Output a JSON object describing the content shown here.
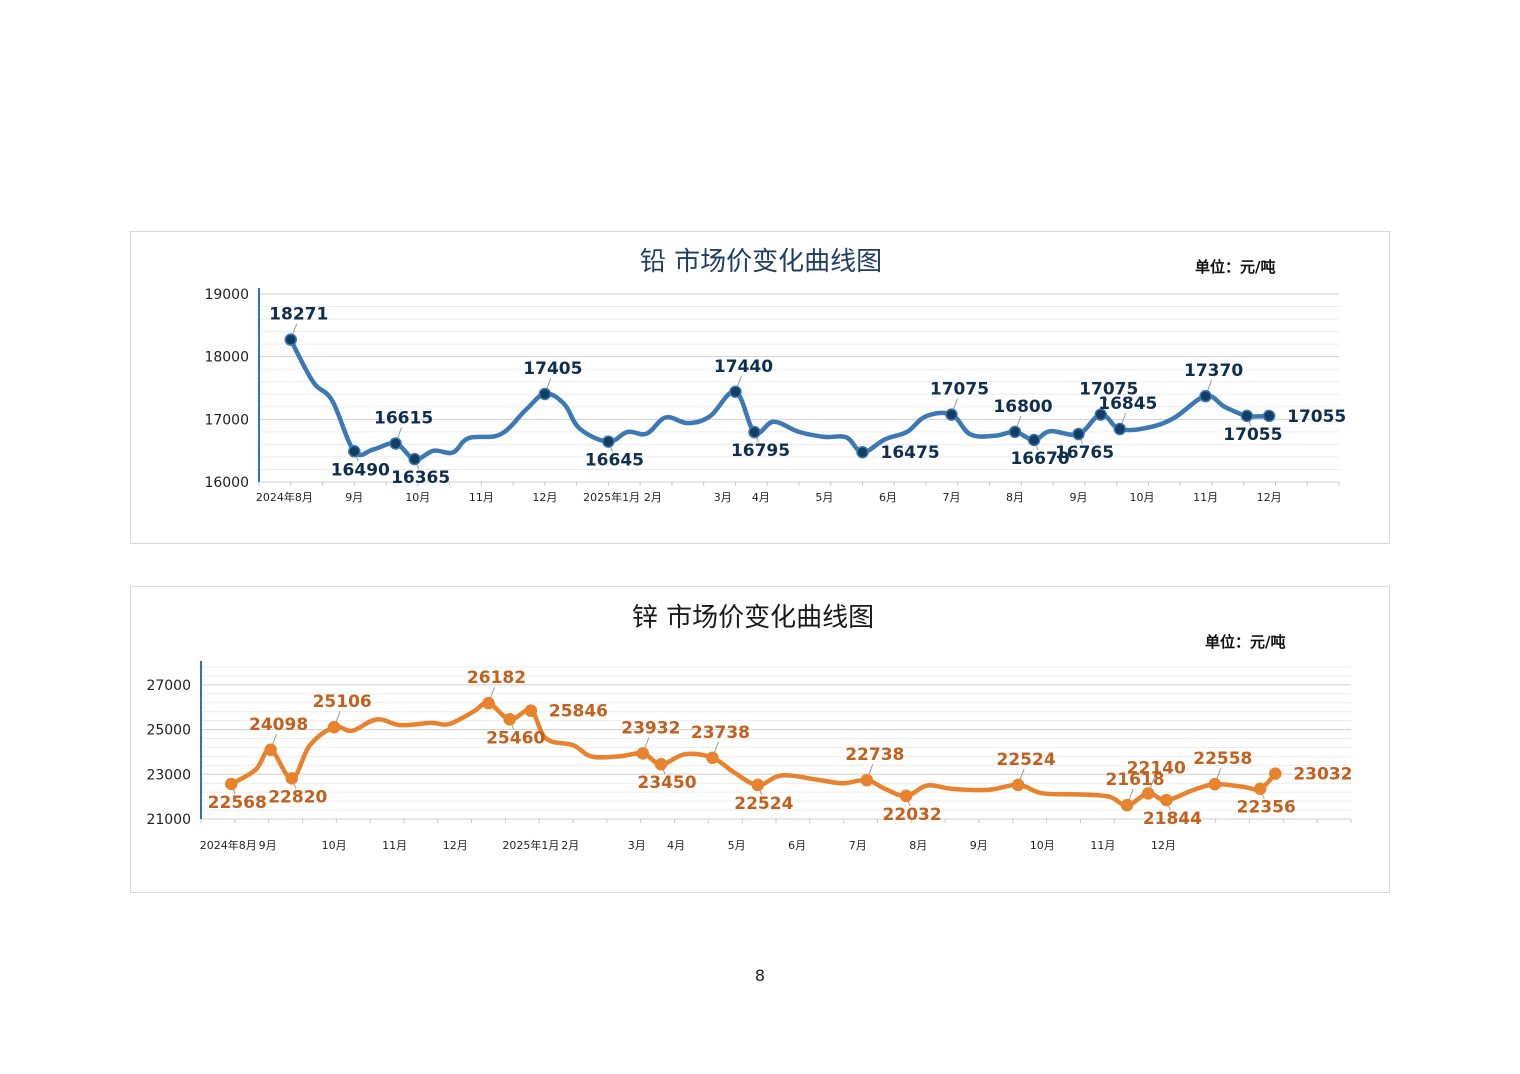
{
  "page": {
    "number": "8"
  },
  "colors": {
    "lead_line": "#3b78b4",
    "lead_label": "#0e2f4f",
    "lead_marker": "#123e63",
    "zinc_line": "#e8822c",
    "zinc_label": "#c2601e",
    "axis_line": "#2e74b5",
    "grid_major": "#d0d0d0",
    "grid_minor": "#ececec"
  },
  "chart_data": [
    {
      "type": "line",
      "title": "铅  市场价变化曲线图",
      "unit": "单位：元/吨",
      "ylim": [
        16000,
        19000
      ],
      "yticks": [
        "19000",
        "18000",
        "17000",
        "16000"
      ],
      "ytick_values": [
        19000,
        18000,
        17000,
        16000
      ],
      "x_range": [
        0,
        17
      ],
      "xticks": [
        {
          "label": "2024年8月",
          "x": 0.4
        },
        {
          "label": "9月",
          "x": 1.5
        },
        {
          "label": "10月",
          "x": 2.5
        },
        {
          "label": "11月",
          "x": 3.5
        },
        {
          "label": "12月",
          "x": 4.5
        },
        {
          "label": "2025年1月",
          "x": 5.55
        },
        {
          "label": "2月",
          "x": 6.2
        },
        {
          "label": "3月",
          "x": 7.3
        },
        {
          "label": "4月",
          "x": 7.9
        },
        {
          "label": "5月",
          "x": 8.9
        },
        {
          "label": "6月",
          "x": 9.9
        },
        {
          "label": "7月",
          "x": 10.9
        },
        {
          "label": "8月",
          "x": 11.9
        },
        {
          "label": "9月",
          "x": 12.9
        },
        {
          "label": "10月",
          "x": 13.9
        },
        {
          "label": "11月",
          "x": 14.9
        },
        {
          "label": "12月",
          "x": 15.9
        }
      ],
      "curve": [
        [
          0.5,
          18271
        ],
        [
          0.85,
          17600
        ],
        [
          1.15,
          17300
        ],
        [
          1.5,
          16490
        ],
        [
          1.8,
          16520
        ],
        [
          2.15,
          16615
        ],
        [
          2.45,
          16365
        ],
        [
          2.75,
          16500
        ],
        [
          3.05,
          16470
        ],
        [
          3.3,
          16700
        ],
        [
          3.8,
          16760
        ],
        [
          4.2,
          17150
        ],
        [
          4.5,
          17405
        ],
        [
          4.8,
          17250
        ],
        [
          5.05,
          16850
        ],
        [
          5.5,
          16645
        ],
        [
          5.8,
          16800
        ],
        [
          6.1,
          16770
        ],
        [
          6.4,
          17030
        ],
        [
          6.75,
          16940
        ],
        [
          7.1,
          17050
        ],
        [
          7.5,
          17440
        ],
        [
          7.8,
          16795
        ],
        [
          8.1,
          16960
        ],
        [
          8.5,
          16800
        ],
        [
          8.9,
          16720
        ],
        [
          9.25,
          16710
        ],
        [
          9.5,
          16475
        ],
        [
          9.85,
          16680
        ],
        [
          10.2,
          16800
        ],
        [
          10.5,
          17050
        ],
        [
          10.9,
          17075
        ],
        [
          11.2,
          16760
        ],
        [
          11.6,
          16740
        ],
        [
          11.9,
          16800
        ],
        [
          12.2,
          16670
        ],
        [
          12.45,
          16810
        ],
        [
          12.9,
          16765
        ],
        [
          13.25,
          17075
        ],
        [
          13.55,
          16845
        ],
        [
          14.0,
          16870
        ],
        [
          14.4,
          17020
        ],
        [
          14.9,
          17370
        ],
        [
          15.2,
          17200
        ],
        [
          15.55,
          17055
        ],
        [
          15.9,
          17055
        ]
      ],
      "markers": [
        {
          "x": 0.5,
          "y": 18271,
          "label": "18271",
          "pos": "above"
        },
        {
          "x": 1.5,
          "y": 16490,
          "label": "16490",
          "pos": "below"
        },
        {
          "x": 2.15,
          "y": 16615,
          "label": "16615",
          "pos": "above"
        },
        {
          "x": 2.45,
          "y": 16365,
          "label": "16365",
          "pos": "below"
        },
        {
          "x": 4.5,
          "y": 17405,
          "label": "17405",
          "pos": "above"
        },
        {
          "x": 5.5,
          "y": 16645,
          "label": "16645",
          "pos": "below"
        },
        {
          "x": 7.5,
          "y": 17440,
          "label": "17440",
          "pos": "above"
        },
        {
          "x": 7.8,
          "y": 16795,
          "label": "16795",
          "pos": "below"
        },
        {
          "x": 9.5,
          "y": 16475,
          "label": "16475",
          "pos": "right"
        },
        {
          "x": 10.9,
          "y": 17075,
          "label": "17075",
          "pos": "above"
        },
        {
          "x": 11.9,
          "y": 16800,
          "label": "16800",
          "pos": "above"
        },
        {
          "x": 12.2,
          "y": 16670,
          "label": "16670",
          "pos": "below"
        },
        {
          "x": 12.9,
          "y": 16765,
          "label": "16765",
          "pos": "below"
        },
        {
          "x": 13.25,
          "y": 17075,
          "label": "17075",
          "pos": "above"
        },
        {
          "x": 13.55,
          "y": 16845,
          "label": "16845",
          "pos": "above"
        },
        {
          "x": 14.9,
          "y": 17370,
          "label": "17370",
          "pos": "above"
        },
        {
          "x": 15.55,
          "y": 17055,
          "label": "17055",
          "pos": "below"
        },
        {
          "x": 15.9,
          "y": 17055,
          "label": "17055",
          "pos": "right"
        }
      ]
    },
    {
      "type": "line",
      "title": "锌  市场价变化曲线图",
      "unit": "单位：元/吨",
      "ylim": [
        21000,
        27800
      ],
      "yticks": [
        "27000",
        "25000",
        "23000",
        "21000"
      ],
      "ytick_values": [
        27000,
        25000,
        23000,
        21000
      ],
      "x_range": [
        0,
        17
      ],
      "xticks": [
        {
          "label": "2024年8月",
          "x": 0.45
        },
        {
          "label": "9月",
          "x": 1.1
        },
        {
          "label": "10月",
          "x": 2.2
        },
        {
          "label": "11月",
          "x": 3.2
        },
        {
          "label": "12月",
          "x": 4.2
        },
        {
          "label": "2025年1月",
          "x": 5.45
        },
        {
          "label": "2月",
          "x": 6.1
        },
        {
          "label": "3月",
          "x": 7.2
        },
        {
          "label": "4月",
          "x": 7.85
        },
        {
          "label": "5月",
          "x": 8.85
        },
        {
          "label": "6月",
          "x": 9.85
        },
        {
          "label": "7月",
          "x": 10.85
        },
        {
          "label": "8月",
          "x": 11.85
        },
        {
          "label": "9月",
          "x": 12.85
        },
        {
          "label": "10月",
          "x": 13.9
        },
        {
          "label": "11月",
          "x": 14.9
        },
        {
          "label": "12月",
          "x": 15.9
        }
      ],
      "curve": [
        [
          0.5,
          22568
        ],
        [
          0.9,
          23200
        ],
        [
          1.15,
          24098
        ],
        [
          1.5,
          22820
        ],
        [
          1.8,
          24300
        ],
        [
          2.2,
          25106
        ],
        [
          2.5,
          24950
        ],
        [
          2.9,
          25450
        ],
        [
          3.3,
          25200
        ],
        [
          3.8,
          25300
        ],
        [
          4.1,
          25250
        ],
        [
          4.5,
          25800
        ],
        [
          4.75,
          26182
        ],
        [
          5.1,
          25460
        ],
        [
          5.45,
          25846
        ],
        [
          5.7,
          24600
        ],
        [
          6.15,
          24300
        ],
        [
          6.45,
          23800
        ],
        [
          6.9,
          23800
        ],
        [
          7.3,
          23932
        ],
        [
          7.6,
          23450
        ],
        [
          8.0,
          23900
        ],
        [
          8.45,
          23738
        ],
        [
          8.8,
          23100
        ],
        [
          9.2,
          22524
        ],
        [
          9.6,
          22950
        ],
        [
          10.2,
          22750
        ],
        [
          10.6,
          22600
        ],
        [
          11.0,
          22738
        ],
        [
          11.3,
          22350
        ],
        [
          11.65,
          22032
        ],
        [
          12.0,
          22500
        ],
        [
          12.4,
          22350
        ],
        [
          13.0,
          22300
        ],
        [
          13.5,
          22524
        ],
        [
          13.9,
          22150
        ],
        [
          14.5,
          22100
        ],
        [
          15.0,
          22000
        ],
        [
          15.3,
          21618
        ],
        [
          15.65,
          22140
        ],
        [
          15.95,
          21844
        ],
        [
          16.4,
          22300
        ],
        [
          16.75,
          22558
        ],
        [
          17.2,
          22450
        ],
        [
          17.5,
          22356
        ],
        [
          17.75,
          23032
        ]
      ],
      "x_range_override": [
        0,
        19
      ],
      "markers": [
        {
          "x": 0.5,
          "y": 22568,
          "label": "22568",
          "pos": "below"
        },
        {
          "x": 1.15,
          "y": 24098,
          "label": "24098",
          "pos": "above"
        },
        {
          "x": 1.5,
          "y": 22820,
          "label": "22820",
          "pos": "below"
        },
        {
          "x": 2.2,
          "y": 25106,
          "label": "25106",
          "pos": "above"
        },
        {
          "x": 4.75,
          "y": 26182,
          "label": "26182",
          "pos": "above"
        },
        {
          "x": 5.1,
          "y": 25460,
          "label": "25460",
          "pos": "below"
        },
        {
          "x": 5.45,
          "y": 25846,
          "label": "25846",
          "pos": "right"
        },
        {
          "x": 7.3,
          "y": 23932,
          "label": "23932",
          "pos": "above"
        },
        {
          "x": 7.6,
          "y": 23450,
          "label": "23450",
          "pos": "below"
        },
        {
          "x": 8.45,
          "y": 23738,
          "label": "23738",
          "pos": "above"
        },
        {
          "x": 9.2,
          "y": 22524,
          "label": "22524",
          "pos": "below"
        },
        {
          "x": 11.0,
          "y": 22738,
          "label": "22738",
          "pos": "above"
        },
        {
          "x": 11.65,
          "y": 22032,
          "label": "22032",
          "pos": "below"
        },
        {
          "x": 13.5,
          "y": 22524,
          "label": "22524",
          "pos": "above"
        },
        {
          "x": 15.3,
          "y": 21618,
          "label": "21618",
          "pos": "above"
        },
        {
          "x": 15.65,
          "y": 22140,
          "label": "22140",
          "pos": "above"
        },
        {
          "x": 15.95,
          "y": 21844,
          "label": "21844",
          "pos": "below"
        },
        {
          "x": 16.75,
          "y": 22558,
          "label": "22558",
          "pos": "above"
        },
        {
          "x": 17.5,
          "y": 22356,
          "label": "22356",
          "pos": "below"
        },
        {
          "x": 17.75,
          "y": 23032,
          "label": "23032",
          "pos": "right"
        }
      ]
    }
  ]
}
